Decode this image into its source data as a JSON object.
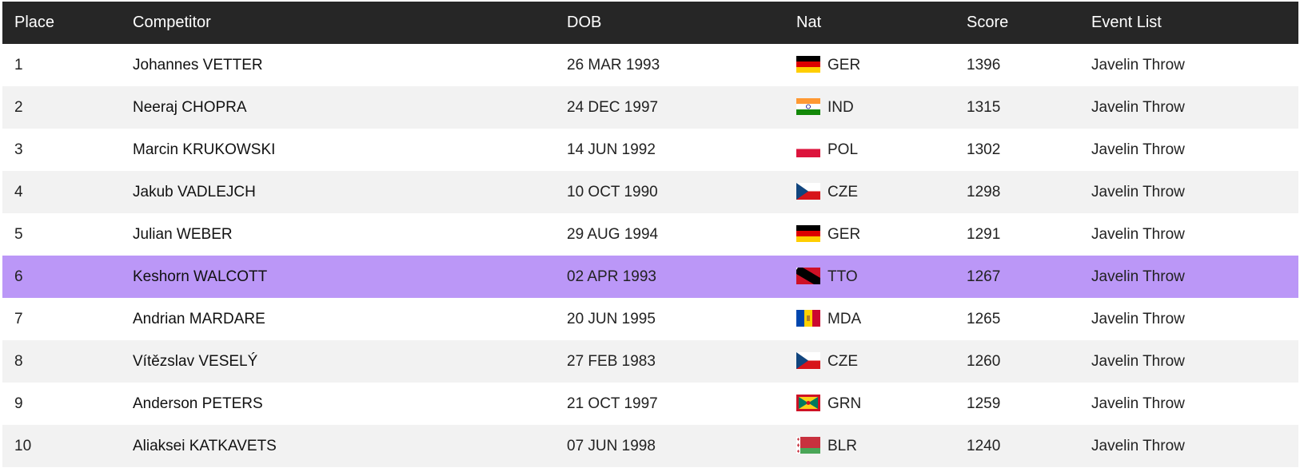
{
  "table": {
    "headers": [
      "Place",
      "Competitor",
      "DOB",
      "Nat",
      "Score",
      "Event List"
    ],
    "rows": [
      [
        1,
        "Johannes VETTER",
        "26 MAR 1993",
        "GER",
        1396,
        "Javelin Throw"
      ],
      [
        2,
        "Neeraj CHOPRA",
        "24 DEC 1997",
        "IND",
        1315,
        "Javelin Throw"
      ],
      [
        3,
        "Marcin KRUKOWSKI",
        "14 JUN 1992",
        "POL",
        1302,
        "Javelin Throw"
      ],
      [
        4,
        "Jakub VADLEJCH",
        "10 OCT 1990",
        "CZE",
        1298,
        "Javelin Throw"
      ],
      [
        5,
        "Julian WEBER",
        "29 AUG 1994",
        "GER",
        1291,
        "Javelin Throw"
      ],
      [
        6,
        "Keshorn WALCOTT",
        "02 APR 1993",
        "TTO",
        1267,
        "Javelin Throw"
      ],
      [
        7,
        "Andrian MARDARE",
        "20 JUN 1995",
        "MDA",
        1265,
        "Javelin Throw"
      ],
      [
        8,
        "Vítězslav VESELÝ",
        "27 FEB 1983",
        "CZE",
        1260,
        "Javelin Throw"
      ],
      [
        9,
        "Anderson PETERS",
        "21 OCT 1997",
        "GRN",
        1259,
        "Javelin Throw"
      ],
      [
        10,
        "Aliaksei KATKAVETS",
        "07 JUN 1998",
        "BLR",
        1240,
        "Javelin Throw"
      ]
    ]
  }
}
